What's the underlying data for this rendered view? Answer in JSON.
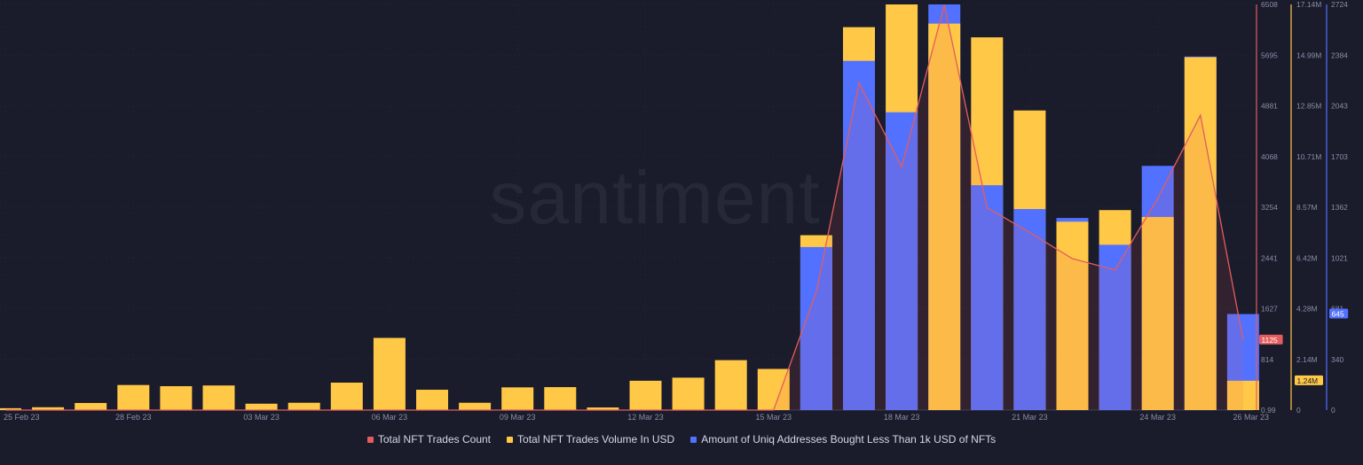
{
  "watermark": "santiment",
  "chart_data": {
    "type": "bar",
    "x": [
      "25 Feb 23",
      "26 Feb 23",
      "27 Feb 23",
      "28 Feb 23",
      "01 Mar 23",
      "02 Mar 23",
      "03 Mar 23",
      "04 Mar 23",
      "05 Mar 23",
      "06 Mar 23",
      "07 Mar 23",
      "08 Mar 23",
      "09 Mar 23",
      "10 Mar 23",
      "11 Mar 23",
      "12 Mar 23",
      "13 Mar 23",
      "14 Mar 23",
      "15 Mar 23",
      "16 Mar 23",
      "17 Mar 23",
      "18 Mar 23",
      "19 Mar 23",
      "20 Mar 23",
      "21 Mar 23",
      "22 Mar 23",
      "23 Mar 23",
      "24 Mar 23",
      "25 Mar 23",
      "26 Mar 23"
    ],
    "x_tick_labels": [
      "25 Feb 23",
      "28 Feb 23",
      "03 Mar 23",
      "06 Mar 23",
      "09 Mar 23",
      "12 Mar 23",
      "15 Mar 23",
      "18 Mar 23",
      "21 Mar 23",
      "24 Mar 23",
      "26 Mar 23"
    ],
    "series": [
      {
        "name": "Total NFT Trades Count",
        "render": "line",
        "color": "#e35d5d",
        "axis": "count",
        "values": [
          0.99,
          0.99,
          0.99,
          0.99,
          0.99,
          0.99,
          0.99,
          0.99,
          0.99,
          0.99,
          0.99,
          0.99,
          0.99,
          0.99,
          0.99,
          0.99,
          0.99,
          0.99,
          0.99,
          1900,
          5250,
          3900,
          6500,
          3250,
          2850,
          2430,
          2250,
          3400,
          4730,
          1125
        ]
      },
      {
        "name": "Total NFT Trades Volume In USD",
        "render": "bar",
        "color": "#ffc847",
        "axis": "volume",
        "values": [
          80000,
          120000,
          300000,
          1060000,
          1010000,
          1040000,
          270000,
          310000,
          1160000,
          3050000,
          860000,
          310000,
          960000,
          970000,
          110000,
          1240000,
          1370000,
          2110000,
          1740000,
          7390000,
          16180000,
          17140000,
          16330000,
          15750000,
          12660000,
          7960000,
          8450000,
          8160000,
          14910000,
          1240000
        ]
      },
      {
        "name": "Amount of Uniq Addresses Bought Less Than 1k USD of NFTs",
        "render": "bar",
        "color": "#5271ff",
        "axis": "addresses",
        "values": [
          0,
          0,
          0,
          0,
          0,
          0,
          0,
          0,
          0,
          0,
          0,
          0,
          0,
          0,
          0,
          0,
          0,
          0,
          0,
          1095,
          2345,
          2000,
          2724,
          1510,
          1350,
          1290,
          1110,
          1640,
          2374,
          645
        ]
      }
    ],
    "axes": [
      {
        "id": "count",
        "color": "#e35d5d",
        "ylim": [
          0.99,
          6508
        ],
        "ticks": [
          "0.99",
          "814",
          "1627",
          "2441",
          "3254",
          "4068",
          "4881",
          "5695",
          "6508"
        ],
        "current": "1125"
      },
      {
        "id": "volume",
        "color": "#ffc847",
        "ylim": [
          0,
          17140000
        ],
        "ticks": [
          "0",
          "2.14M",
          "4.28M",
          "6.42M",
          "8.57M",
          "10.71M",
          "12.85M",
          "14.99M",
          "17.14M"
        ],
        "current": "1.24M"
      },
      {
        "id": "addresses",
        "color": "#5271ff",
        "ylim": [
          0,
          2724
        ],
        "ticks": [
          "0",
          "340",
          "681",
          "1021",
          "1362",
          "1703",
          "2043",
          "2384",
          "2724"
        ],
        "current": "645"
      }
    ],
    "grid": true,
    "legend_position": "bottom-center"
  }
}
